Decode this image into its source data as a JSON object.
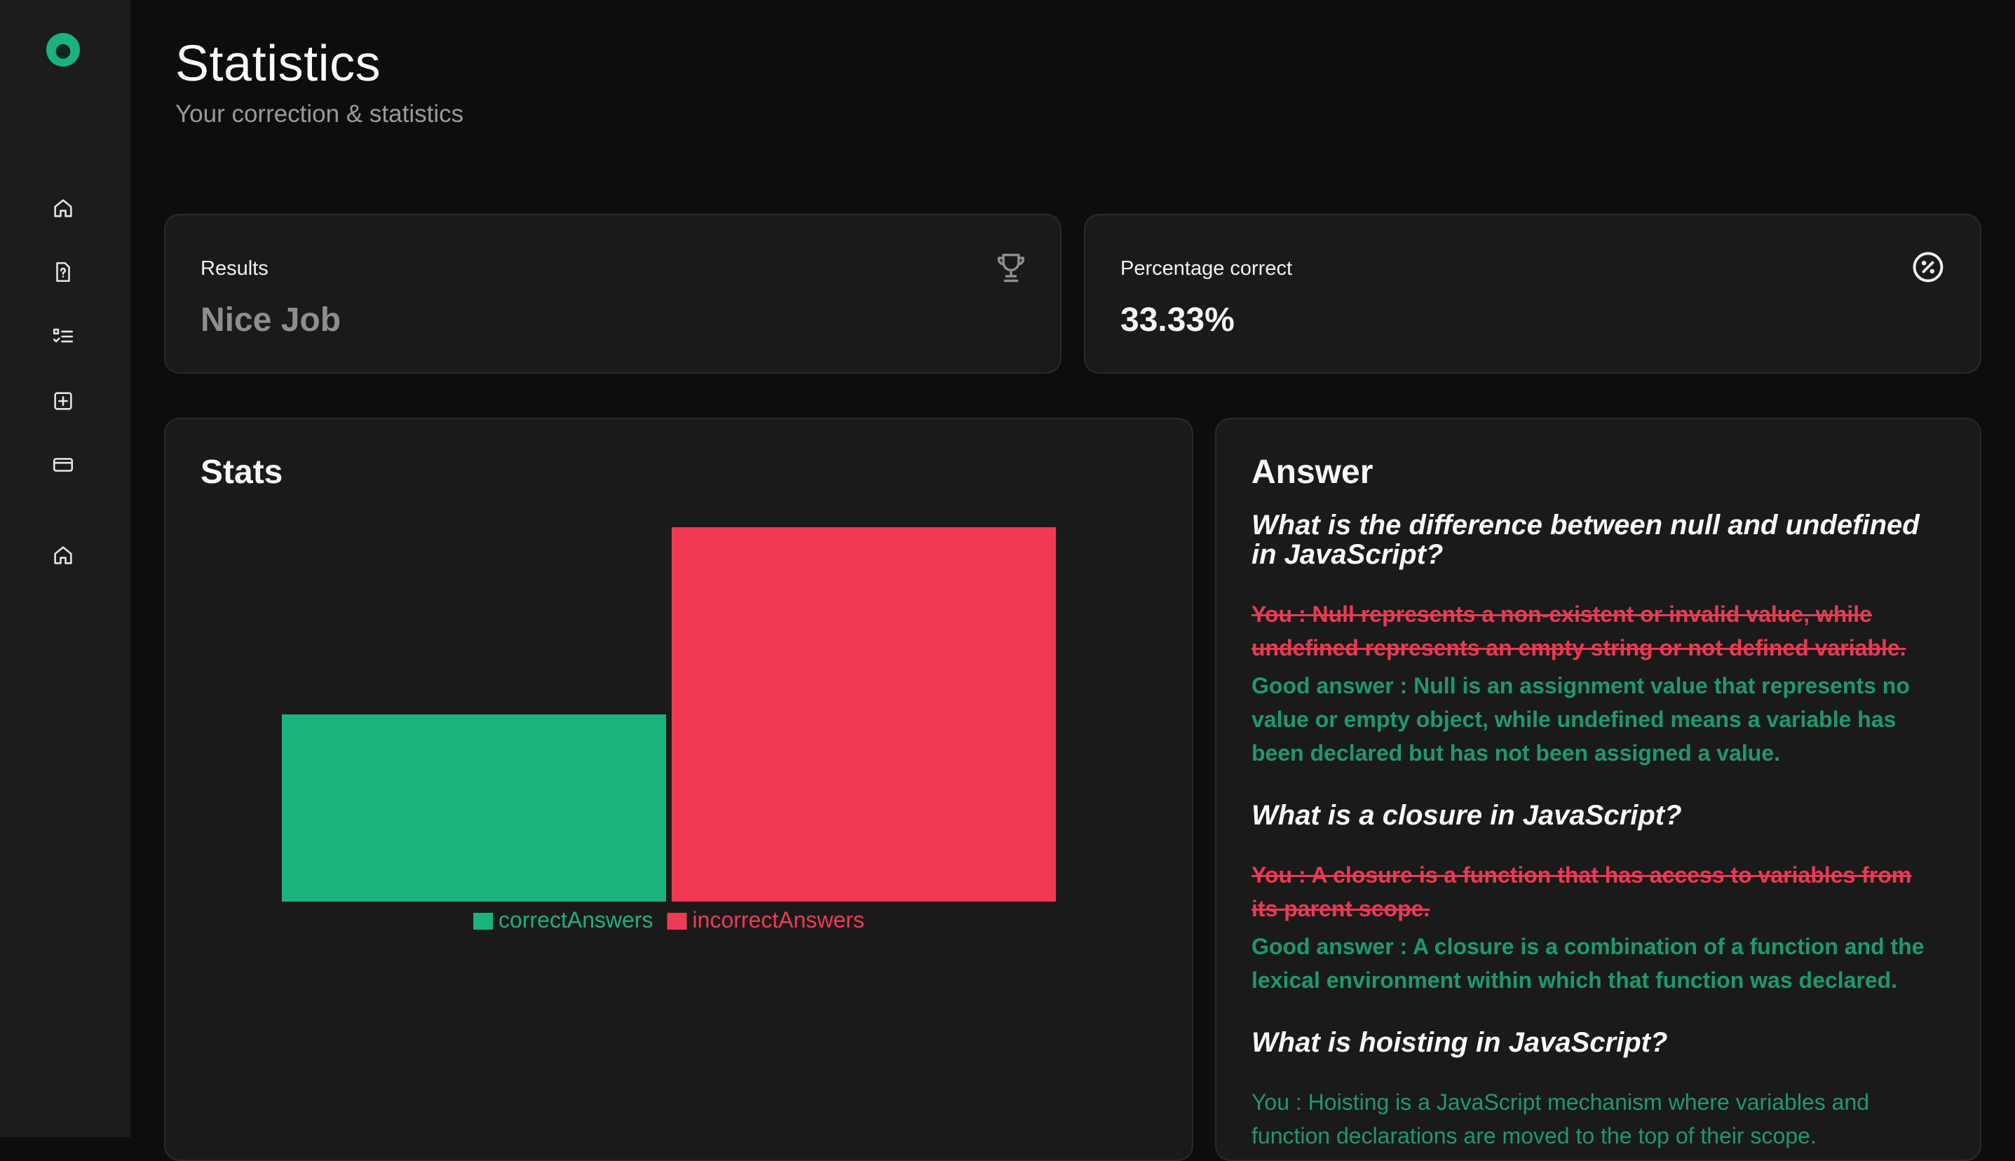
{
  "header": {
    "title": "Statistics",
    "subtitle": "Your correction & statistics"
  },
  "sidebar": {
    "logo": "app-logo",
    "items": [
      {
        "icon": "home-icon"
      },
      {
        "icon": "quiz-file-icon"
      },
      {
        "icon": "checklist-icon"
      },
      {
        "icon": "plus-square-icon"
      },
      {
        "icon": "credit-card-icon"
      },
      {
        "icon": "home-icon"
      }
    ]
  },
  "results_card": {
    "label": "Results",
    "value": "Nice Job",
    "icon": "trophy-icon"
  },
  "percentage_card": {
    "label": "Percentage correct",
    "value": "33.33%",
    "icon": "percent-circle-icon"
  },
  "stats": {
    "title": "Stats"
  },
  "chart_data": {
    "type": "bar",
    "categories": [
      "correctAnswers",
      "incorrectAnswers"
    ],
    "values": [
      1,
      2
    ],
    "ylim": [
      0,
      2
    ],
    "colors": [
      "#1ab37c",
      "#f03a55"
    ],
    "legend": [
      "correctAnswers",
      "incorrectAnswers"
    ],
    "legend_position": "bottom",
    "grid": false
  },
  "answers": {
    "title": "Answer",
    "items": [
      {
        "question": "What is the difference between null and undefined in JavaScript?",
        "your_answer": "You : Null represents a non-existent or invalid value, while undefined represents an empty string or not defined variable.",
        "correct": false,
        "good_answer": "Good answer : Null is an assignment value that represents no value or empty object, while undefined means a variable has been declared but has not been assigned a value."
      },
      {
        "question": "What is a closure in JavaScript?",
        "your_answer": "You : A closure is a function that has access to variables from its parent scope.",
        "correct": false,
        "good_answer": "Good answer : A closure is a combination of a function and the lexical environment within which that function was declared."
      },
      {
        "question": "What is hoisting in JavaScript?",
        "your_answer": "You : Hoisting is a JavaScript mechanism where variables and function declarations are moved to the top of their scope.",
        "correct": true
      }
    ]
  },
  "colors": {
    "correct": "#1d9a6c",
    "incorrect": "#e83b53",
    "background": "#0f0d0c",
    "card": "#1a1a1a"
  }
}
